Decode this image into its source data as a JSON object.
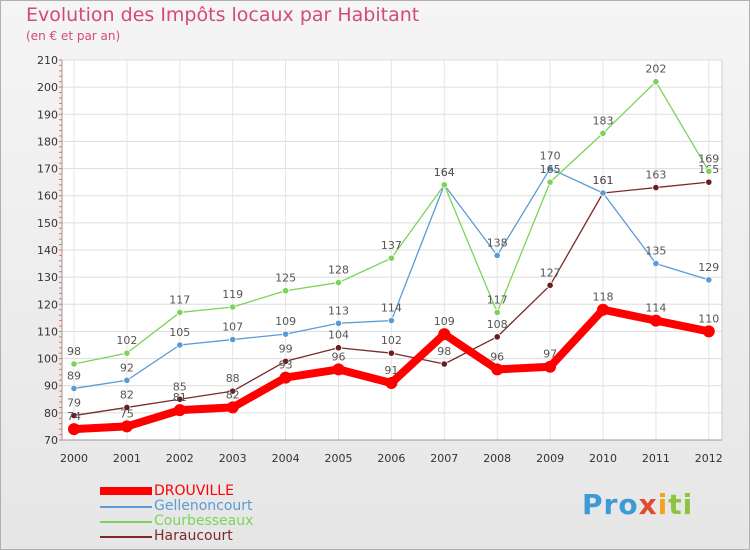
{
  "chart_data": {
    "type": "line",
    "title": "Evolution des Impôts locaux par Habitant",
    "subtitle": "(en € et par an)",
    "x": [
      "2000",
      "2001",
      "2002",
      "2003",
      "2004",
      "2005",
      "2006",
      "2007",
      "2008",
      "2009",
      "2010",
      "2011",
      "2012"
    ],
    "y_ticks": [
      70,
      80,
      90,
      100,
      110,
      120,
      130,
      140,
      150,
      160,
      170,
      180,
      190,
      200,
      210
    ],
    "ylim": [
      70,
      210
    ],
    "grid": true,
    "legend_position": "bottom-left",
    "series": [
      {
        "name": "DROUVILLE",
        "color": "#ff0000",
        "values": [
          74,
          75,
          81,
          82,
          93,
          96,
          91,
          109,
          96,
          97,
          118,
          114,
          110
        ]
      },
      {
        "name": "Gellenoncourt",
        "color": "#5a9bd5",
        "values": [
          89,
          92,
          105,
          107,
          109,
          113,
          114,
          164,
          138,
          170,
          161,
          135,
          129
        ]
      },
      {
        "name": "Courbesseaux",
        "color": "#7dd35a",
        "values": [
          98,
          102,
          117,
          119,
          125,
          128,
          137,
          164,
          117,
          165,
          183,
          202,
          169
        ]
      },
      {
        "name": "Haraucourt",
        "color": "#7a2a2a",
        "values": [
          79,
          82,
          85,
          88,
          99,
          104,
          102,
          98,
          108,
          127,
          161,
          163,
          165
        ]
      }
    ]
  },
  "brand": {
    "p": "Pro",
    "x": "x",
    "i": "i",
    "t": "ti"
  }
}
